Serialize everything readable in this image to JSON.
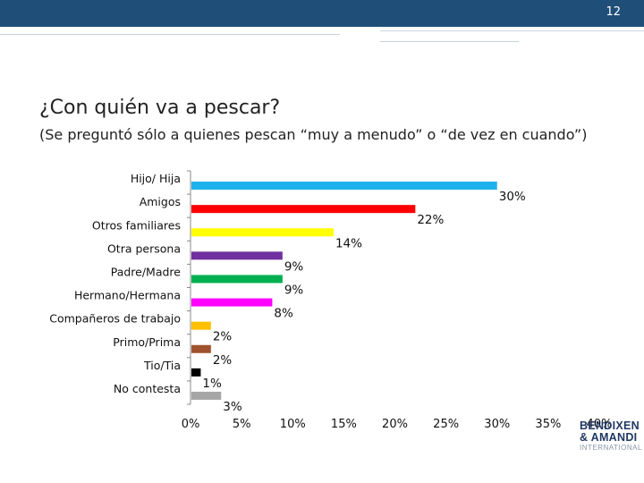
{
  "header": {
    "page_number": "12"
  },
  "slide": {
    "title": "¿Con quién va a pescar?",
    "subtitle": "(Se preguntó sólo a quienes pescan “muy a menudo” o “de vez en cuando”)"
  },
  "logo": {
    "line1": "BENDIXEN",
    "line2": "& AMANDI",
    "line3": "INTERNATIONAL"
  },
  "chart_data": {
    "type": "bar",
    "orientation": "horizontal",
    "title": "¿Con quién va a pescar?",
    "xlabel": "",
    "ylabel": "",
    "xlim": [
      0,
      40
    ],
    "x_ticks": [
      "0%",
      "5%",
      "10%",
      "15%",
      "20%",
      "25%",
      "30%",
      "35%",
      "40%"
    ],
    "categories": [
      "Hijo/ Hija",
      "Amigos",
      "Otros familiares",
      "Otra persona",
      "Padre/Madre",
      "Hermano/Hermana",
      "Compañeros de trabajo",
      "Primo/Prima",
      "Tio/Tia",
      "No contesta"
    ],
    "values": [
      30,
      22,
      14,
      9,
      9,
      8,
      2,
      2,
      1,
      3
    ],
    "labels": [
      "30%",
      "22%",
      "14%",
      "9%",
      "9%",
      "8%",
      "2%",
      "2%",
      "1%",
      "3%"
    ],
    "colors": [
      "#1eb1ec",
      "#ff0000",
      "#ffff00",
      "#7030a0",
      "#00b050",
      "#ff00ff",
      "#ffc000",
      "#a0522d",
      "#000000",
      "#a6a6a6"
    ]
  }
}
